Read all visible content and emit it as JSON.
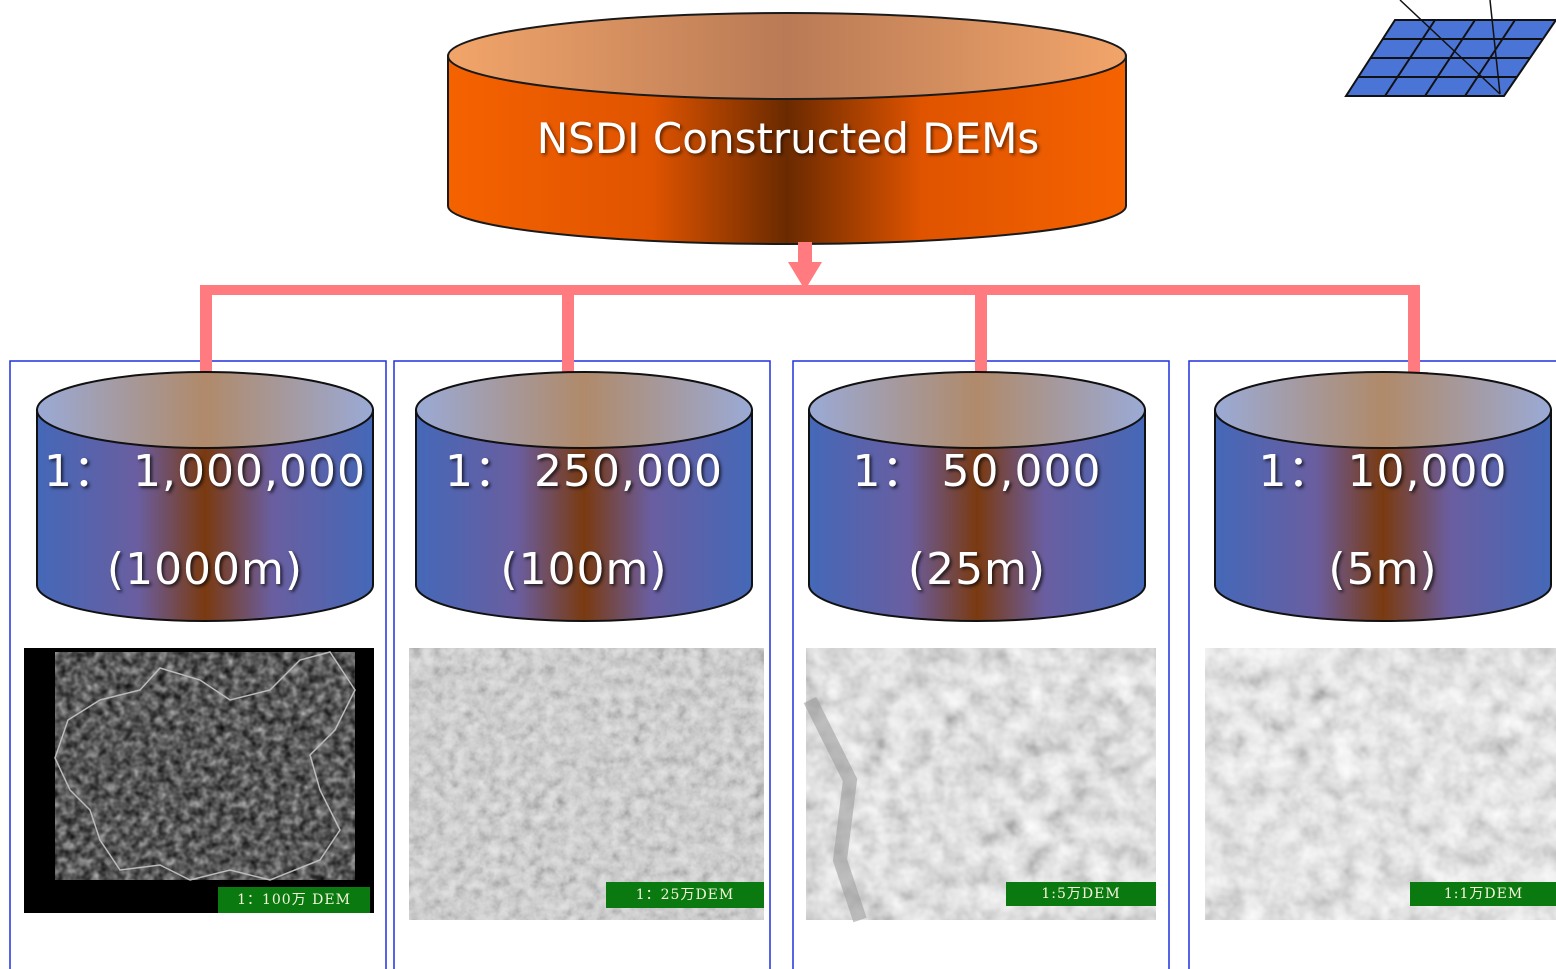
{
  "main_db": {
    "label": "NSDI Constructed DEMs"
  },
  "levels": [
    {
      "scale": "1：  1,000,000",
      "resolution": "(1000m)",
      "map_label": "1：100万 DEM"
    },
    {
      "scale": "1：  250,000",
      "resolution": "(100m)",
      "map_label": "1：25万DEM"
    },
    {
      "scale": "1：  50,000",
      "resolution": "(25m)",
      "map_label": "1:5万DEM"
    },
    {
      "scale": "1：  10,000",
      "resolution": "(5m)",
      "map_label": "1:1万DEM"
    }
  ],
  "colors": {
    "main_orange": "#f56200",
    "main_brown": "#6a2a00",
    "main_top": "#f2a56a",
    "level_blue": "#4468b8",
    "level_brown": "#7a3a10",
    "level_top": "#9aaad6",
    "arrow_pink": "#ff7b80",
    "panel_border": "#2030e0",
    "label_green": "#0a7a10"
  },
  "icons": {
    "corner": "grid-plane-icon"
  }
}
